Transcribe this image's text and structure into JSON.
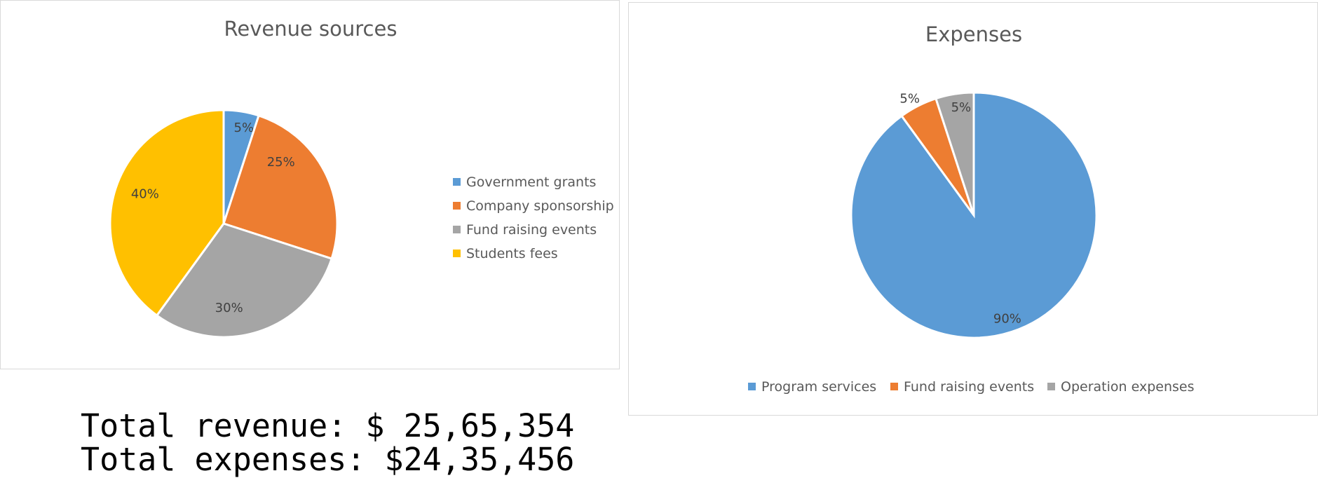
{
  "chart_data": [
    {
      "type": "pie",
      "title": "Revenue sources",
      "legend_position": "right",
      "slices": [
        {
          "label": "Government grants",
          "value": 5,
          "display": "5%",
          "color": "#5b9bd5"
        },
        {
          "label": "Company sponsorship",
          "value": 25,
          "display": "25%",
          "color": "#ed7d31"
        },
        {
          "label": "Fund raising events",
          "value": 30,
          "display": "30%",
          "color": "#a5a5a5"
        },
        {
          "label": "Students fees",
          "value": 40,
          "display": "40%",
          "color": "#ffc000"
        }
      ]
    },
    {
      "type": "pie",
      "title": "Expenses",
      "legend_position": "bottom",
      "slices": [
        {
          "label": "Program services",
          "value": 90,
          "display": "90%",
          "color": "#5b9bd5"
        },
        {
          "label": "Fund raising events",
          "value": 5,
          "display": "5%",
          "color": "#ed7d31"
        },
        {
          "label": "Operation expenses",
          "value": 5,
          "display": "5%",
          "color": "#a5a5a5"
        }
      ]
    }
  ],
  "totals": {
    "revenue": "Total revenue: $ 25,65,354",
    "expenses": "Total expenses: $24,35,456"
  }
}
